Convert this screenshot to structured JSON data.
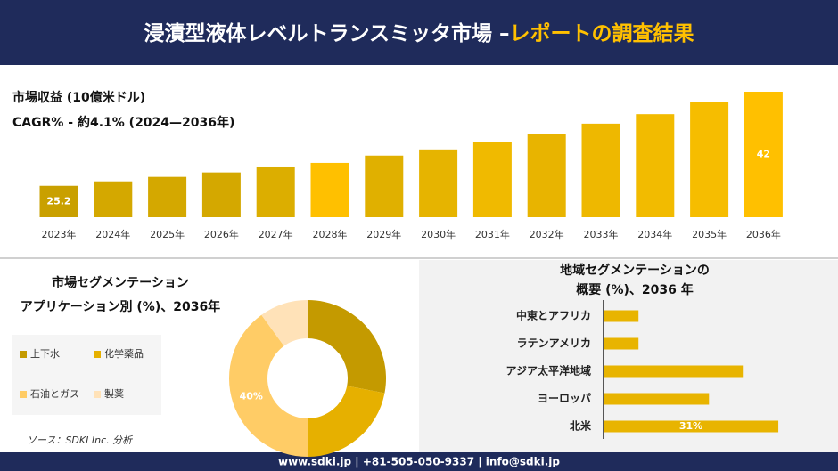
{
  "header": {
    "title_main": "浸漬型液体レベルトランスミッタ市場 –",
    "title_highlight": "レポートの調査結果"
  },
  "chart_data": [
    {
      "type": "bar",
      "title": "市場収益 (10億米ドル)",
      "subtitle": "CAGR% - 約4.1% (2024—2036年)",
      "categories": [
        "2023年",
        "2024年",
        "2025年",
        "2026年",
        "2027年",
        "2028年",
        "2029年",
        "2030年",
        "2031年",
        "2032年",
        "2033年",
        "2034年",
        "2035年",
        "2036年"
      ],
      "values": [
        25.2,
        26.0,
        26.8,
        27.6,
        28.5,
        29.3,
        30.6,
        31.7,
        33.1,
        34.5,
        36.3,
        38.0,
        40.1,
        42
      ],
      "value_labels": [
        "25.2",
        null,
        null,
        null,
        null,
        null,
        null,
        null,
        null,
        null,
        null,
        null,
        null,
        "42"
      ],
      "colors": [
        "#c9a000",
        "#d4a800",
        "#d4a800",
        "#d4a800",
        "#dcae00",
        "#ffc000",
        "#e0b000",
        "#e6b400",
        "#f0ba00",
        "#e8b400",
        "#eeb800",
        "#f2bb00",
        "#f6bd00",
        "#ffc000"
      ],
      "ylim": [
        19.6,
        42
      ]
    },
    {
      "type": "pie",
      "title": "市場セグメンテーション",
      "subtitle": "アプリケーション別 (%)、2036年",
      "categories": [
        "上下水",
        "化学薬品",
        "石油とガス",
        "製薬"
      ],
      "values": [
        28,
        22,
        40,
        10
      ],
      "value_labels": [
        null,
        null,
        "40%",
        null
      ],
      "colors": [
        "#c49a00",
        "#e6b000",
        "#ffcc66",
        "#ffe2b8"
      ],
      "hole": true
    },
    {
      "type": "hbar",
      "title": "地域セグメンテーションの",
      "subtitle": "概要 (%)、2036 年",
      "categories": [
        "中東とアフリカ",
        "ラテンアメリカ",
        "アジア太平洋地域",
        "ヨーロッパ",
        "北米"
      ],
      "values": [
        6.2,
        6.2,
        24.7,
        18.7,
        31
      ],
      "value_labels": [
        null,
        null,
        null,
        null,
        "31%"
      ],
      "color": "#e8b400",
      "xlim": [
        0,
        40
      ]
    }
  ],
  "source": "ソース：SDKI Inc. 分析",
  "footer": "www.sdki.jp | +81-505-050-9337 | info@sdki.jp"
}
